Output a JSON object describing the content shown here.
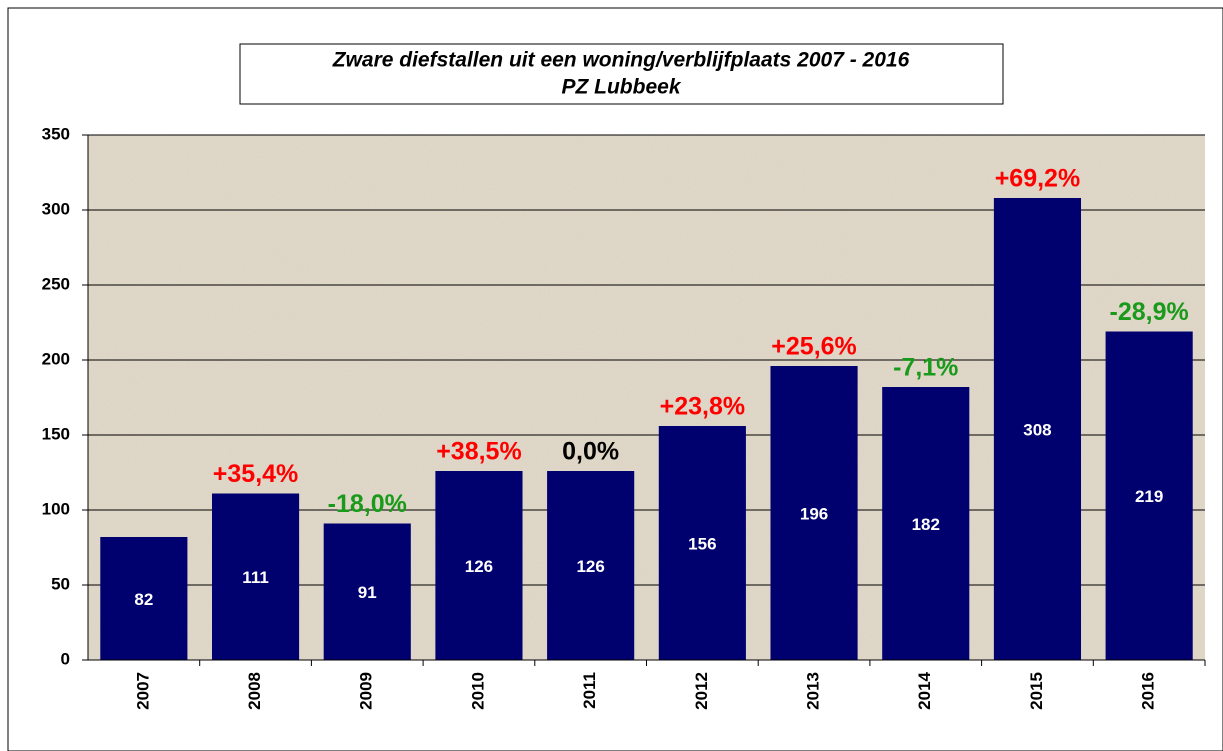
{
  "chart_data": {
    "type": "bar",
    "title": "Zware diefstallen uit een woning/verblijfplaats 2007 - 2016",
    "subtitle": "PZ Lubbeek",
    "categories": [
      "2007",
      "2008",
      "2009",
      "2010",
      "2011",
      "2012",
      "2013",
      "2014",
      "2015",
      "2016"
    ],
    "values": [
      82,
      111,
      91,
      126,
      126,
      156,
      196,
      182,
      308,
      219
    ],
    "color": "#00006e",
    "annotations": [
      null,
      "+35,4%",
      "-18,0%",
      "+38,5%",
      "0,0%",
      "+23,8%",
      "+25,6%",
      "-7,1%",
      "+69,2%",
      "-28,9%"
    ],
    "annotation_colors": [
      null,
      "#ff0000",
      "#1a9a1a",
      "#ff0000",
      "#000000",
      "#ff0000",
      "#ff0000",
      "#1a9a1a",
      "#ff0000",
      "#1a9a1a"
    ],
    "ylim": [
      0,
      350
    ],
    "yticks": [
      0,
      50,
      100,
      150,
      200,
      250,
      300,
      350
    ],
    "grid": true
  }
}
